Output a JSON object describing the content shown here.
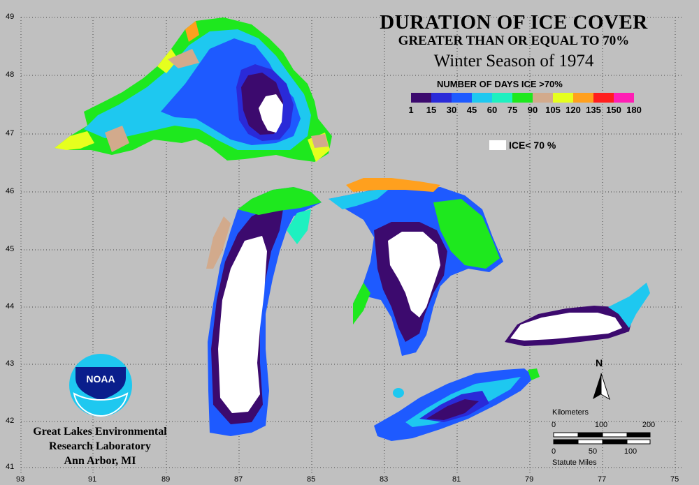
{
  "title": {
    "line1": "DURATION OF ICE COVER",
    "line2": "GREATER THAN OR EQUAL TO 70%",
    "line3": "Winter Season of 1974"
  },
  "legend": {
    "title": "NUMBER OF DAYS ICE >70%",
    "colors": [
      "#3c0a6e",
      "#2a2ad8",
      "#1e5aff",
      "#1ec8f0",
      "#1ef0c0",
      "#1ee81e",
      "#d2aa8c",
      "#e6ff1e",
      "#ffa01e",
      "#ff1e1e",
      "#ff1eb4"
    ],
    "ticks": [
      "1",
      "15",
      "30",
      "45",
      "60",
      "75",
      "90",
      "105",
      "120",
      "135",
      "150",
      "180"
    ],
    "ice_label": "ICE< 70 %",
    "ice_color": "#ffffff"
  },
  "axes": {
    "latitudes": [
      "49",
      "48",
      "47",
      "46",
      "45",
      "44",
      "43",
      "42",
      "41"
    ],
    "longitudes": [
      "93",
      "91",
      "89",
      "87",
      "85",
      "83",
      "81",
      "79",
      "77",
      "75"
    ]
  },
  "organization": {
    "line1": "Great Lakes Environmental",
    "line2": "Research Laboratory",
    "line3": "Ann Arbor, MI",
    "logo_text": "NOAA"
  },
  "scale_bar": {
    "km_label": "Kilometers",
    "km_ticks": [
      "0",
      "100",
      "200"
    ],
    "mi_label": "Statute Miles",
    "mi_ticks": [
      "0",
      "50",
      "100"
    ]
  },
  "north_label": "N"
}
